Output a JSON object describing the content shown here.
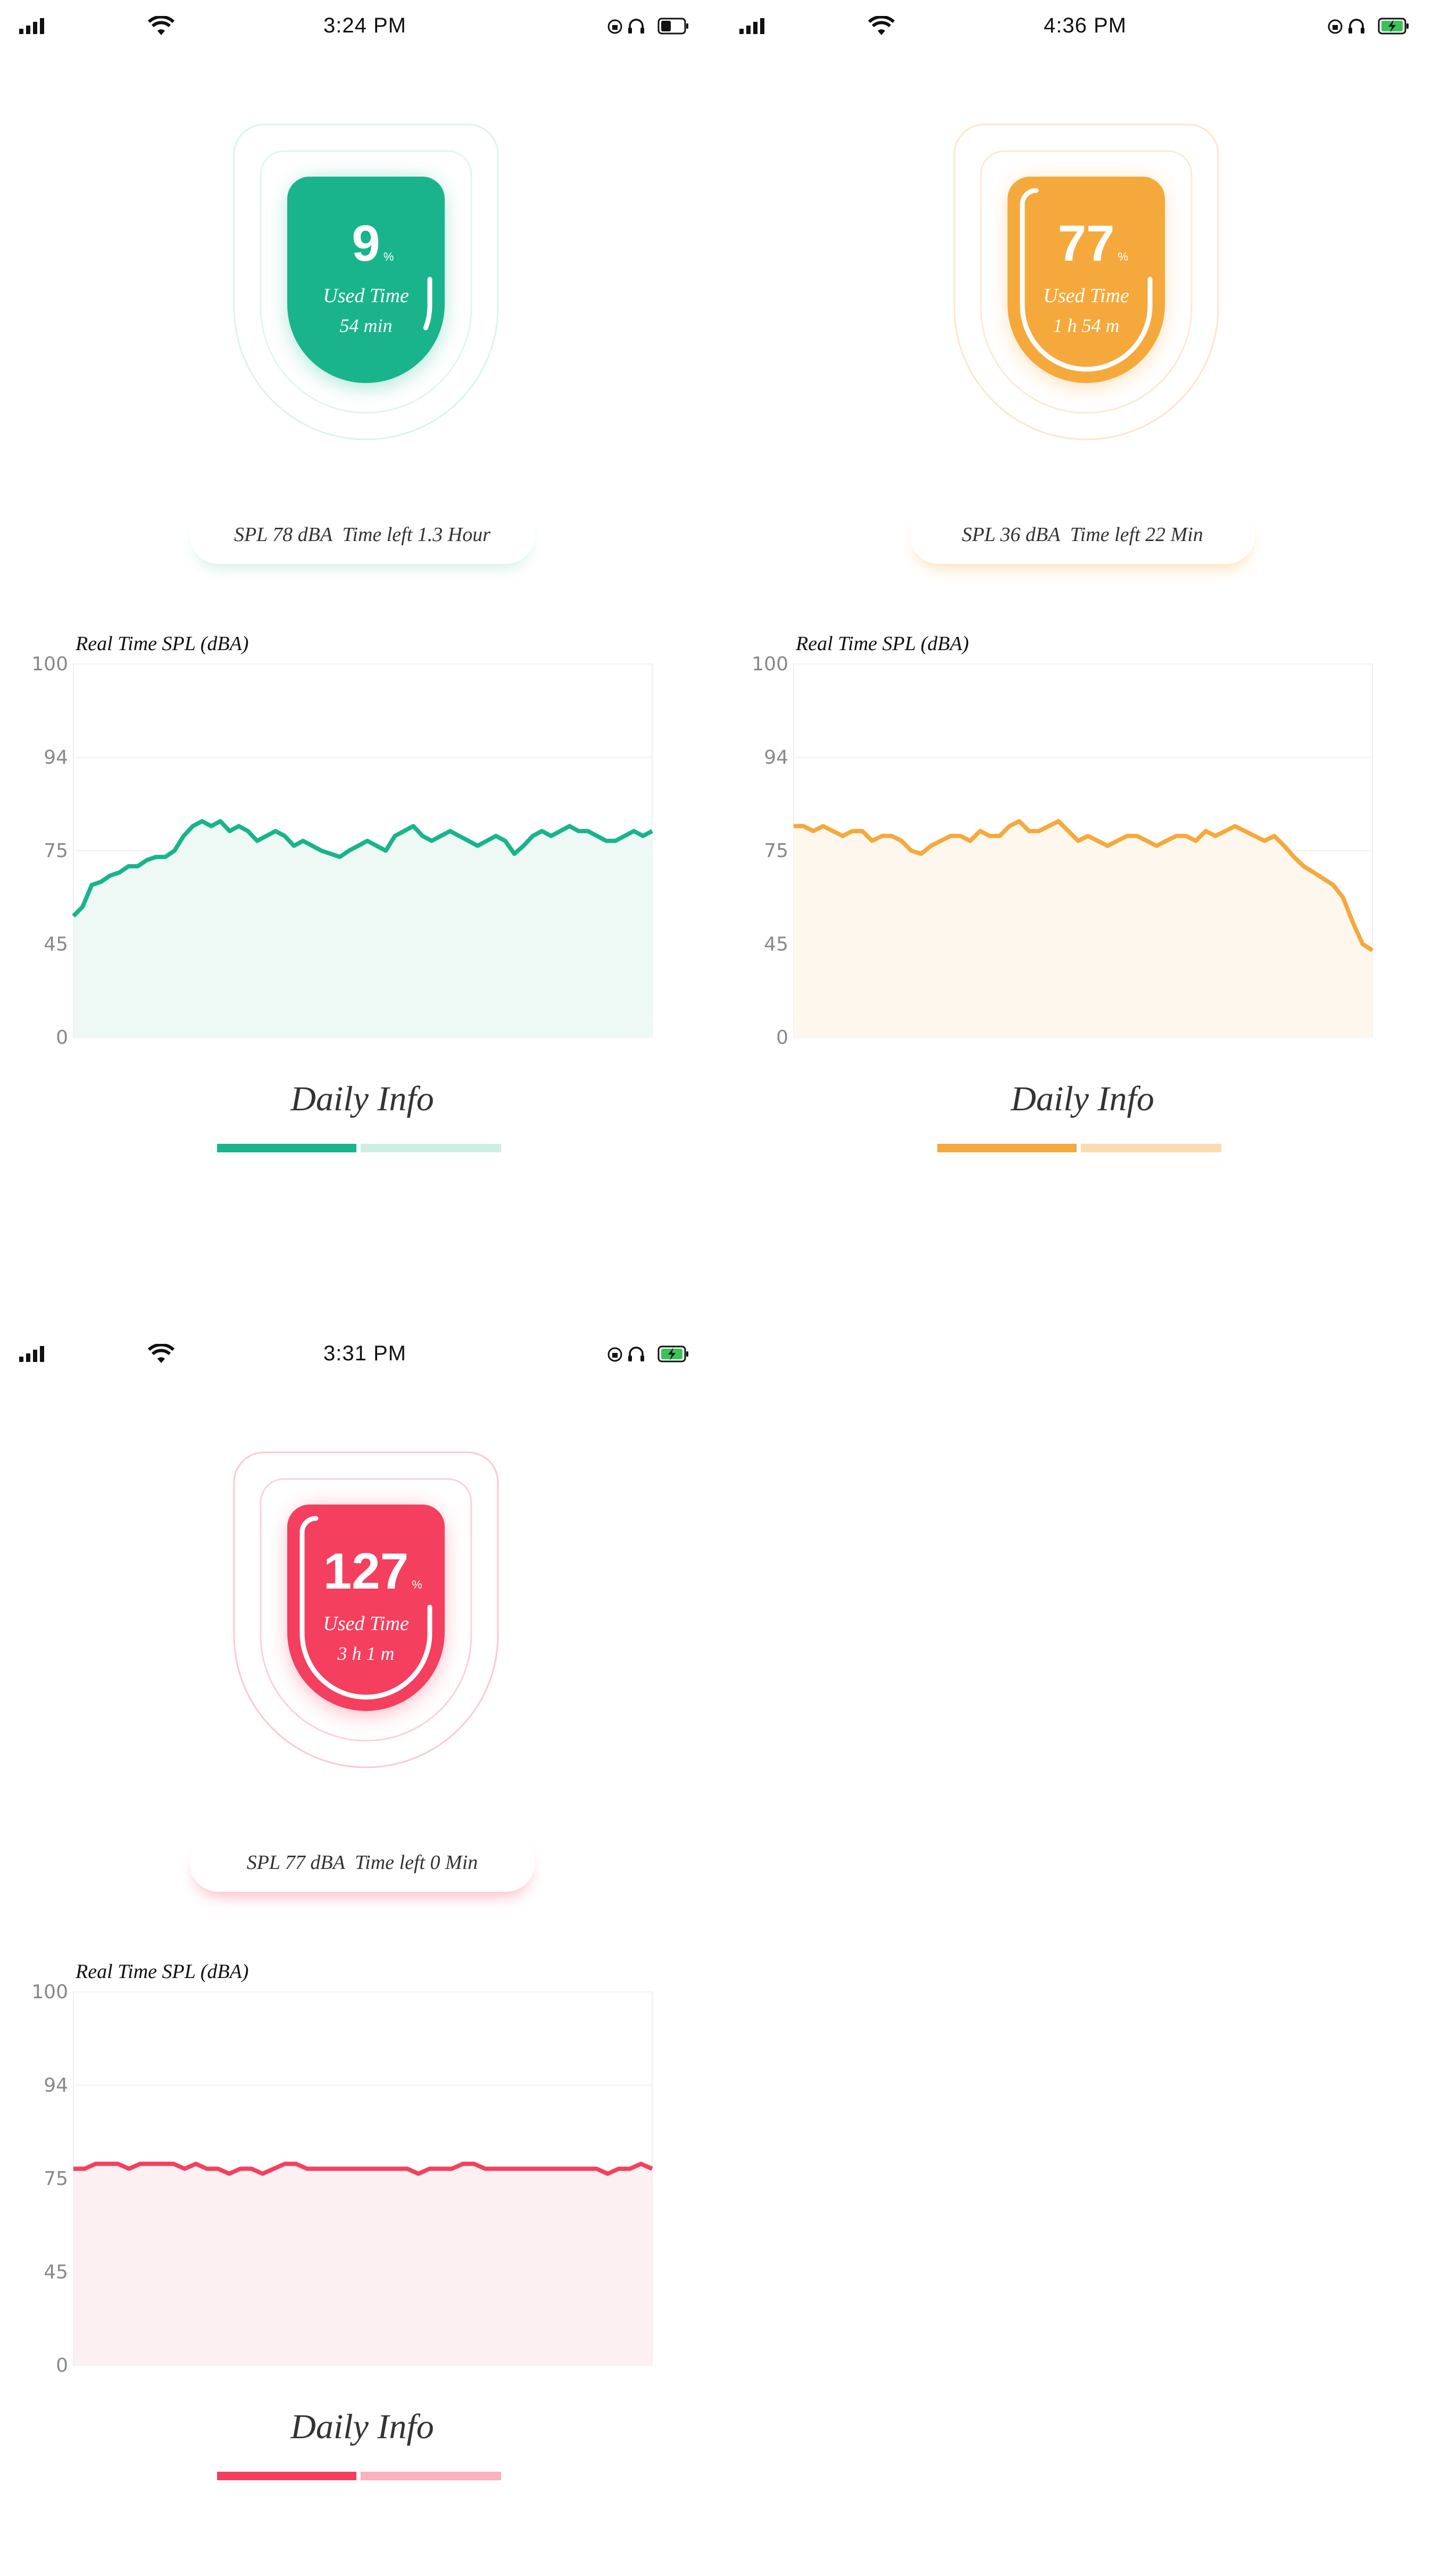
{
  "screens": [
    {
      "time": "3:24 PM",
      "accent": "#19b48b",
      "light": "#cdeee3",
      "fill": "#eef9f5",
      "battery": "low",
      "gauge": {
        "percent": "9",
        "percent_sign": "%",
        "used_label": "Used Time",
        "used_value": "54 min",
        "arc_fraction": 0.09
      },
      "spl_text": "SPL 78 dBA  Time left 1.3 Hour",
      "chart_title": "Real Time SPL (dBA)",
      "daily_label": "Daily Info"
    },
    {
      "time": "4:36 PM",
      "accent": "#f5a93c",
      "light": "#fddbb0",
      "fill": "#fdf7ee",
      "battery": "charging",
      "gauge": {
        "percent": "77",
        "percent_sign": "%",
        "used_label": "Used Time",
        "used_value": "1 h 54 m",
        "arc_fraction": 0.77
      },
      "spl_text": "SPL 36 dBA  Time left 22 Min",
      "chart_title": "Real Time SPL (dBA)",
      "daily_label": "Daily Info"
    },
    {
      "time": "3:31 PM",
      "accent": "#f43f5e",
      "light": "#fdb0bd",
      "fill": "#fdf0f2",
      "battery": "charging",
      "gauge": {
        "percent": "127",
        "percent_sign": "%",
        "used_label": "Used Time",
        "used_value": "3 h 1 m",
        "arc_fraction": 1.0
      },
      "spl_text": "SPL 77 dBA  Time left 0 Min",
      "chart_title": "Real Time SPL (dBA)",
      "daily_label": "Daily Info"
    }
  ],
  "chart_data": [
    {
      "type": "area",
      "title": "Real Time SPL (dBA)",
      "y_ticks": [
        "100",
        "94",
        "75",
        "45",
        "0"
      ],
      "values": [
        54,
        57,
        64,
        65,
        67,
        68,
        70,
        70,
        72,
        73,
        73,
        75,
        78,
        80,
        81,
        80,
        81,
        79,
        80,
        79,
        77,
        78,
        79,
        78,
        76,
        77,
        76,
        75,
        74,
        73,
        75,
        76,
        77,
        76,
        75,
        78,
        79,
        80,
        78,
        77,
        78,
        79,
        78,
        77,
        76,
        77,
        78,
        77,
        74,
        76,
        78,
        79,
        78,
        79,
        80,
        79,
        79,
        78,
        77,
        77,
        78,
        79,
        78,
        79
      ]
    },
    {
      "type": "area",
      "title": "Real Time SPL (dBA)",
      "y_ticks": [
        "100",
        "94",
        "75",
        "45",
        "0"
      ],
      "values": [
        80,
        80,
        79,
        80,
        79,
        78,
        79,
        79,
        77,
        78,
        78,
        77,
        75,
        74,
        76,
        77,
        78,
        78,
        77,
        79,
        78,
        78,
        80,
        81,
        79,
        79,
        80,
        81,
        79,
        77,
        78,
        77,
        76,
        77,
        78,
        78,
        77,
        76,
        77,
        78,
        78,
        77,
        79,
        78,
        79,
        80,
        79,
        78,
        77,
        78,
        76,
        73,
        70,
        68,
        66,
        64,
        60,
        52,
        45,
        42
      ]
    },
    {
      "type": "area",
      "title": "Real Time SPL (dBA)",
      "y_ticks": [
        "100",
        "94",
        "75",
        "45",
        "0"
      ],
      "values": [
        77,
        77,
        78,
        78,
        78,
        77,
        78,
        78,
        78,
        78,
        77,
        78,
        77,
        77,
        76,
        77,
        77,
        76,
        77,
        78,
        78,
        77,
        77,
        77,
        77,
        77,
        77,
        77,
        77,
        77,
        77,
        76,
        77,
        77,
        77,
        78,
        78,
        77,
        77,
        77,
        77,
        77,
        77,
        77,
        77,
        77,
        77,
        77,
        76,
        77,
        77,
        78,
        77
      ]
    }
  ]
}
